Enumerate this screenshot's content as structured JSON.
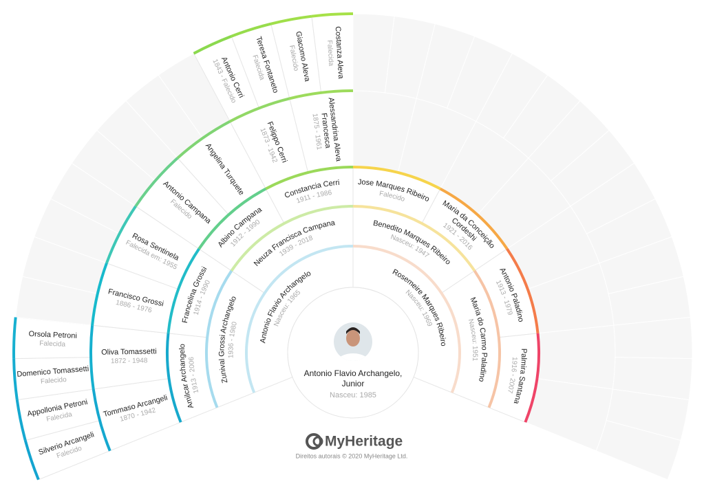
{
  "root": {
    "name": [
      "Antonio Flavio Archangelo,",
      "Junior"
    ],
    "dates": "Nasceu: 1985"
  },
  "generations": [
    [
      {
        "name": "Antonio Flavio Archangelo",
        "dates": "Nasceu: 1965",
        "color": "#c3e6f2"
      },
      {
        "name": "Rosemeire Marques Ribeiro",
        "dates": "Nasceu: 1969",
        "color": "#f8dccb"
      }
    ],
    [
      {
        "name": "Zunival Grossi Archangelo",
        "dates": "1936 - 1980",
        "color": "#a6dbee"
      },
      {
        "name": "Neuza Francisca Campana",
        "dates": "1939 - 2018",
        "color": "#cdeba6"
      },
      {
        "name": "Benedito Marques Ribeiro",
        "dates": "Nasceu: 1947",
        "color": "#f6e39c"
      },
      {
        "name": "Maria do Carmo Paladino",
        "dates": "Nasceu: 1951",
        "color": "#f6c4a6"
      }
    ],
    [
      {
        "name": "Amilcar Archangelo",
        "dates": "1913 - 2006",
        "color": "#17a9cc"
      },
      {
        "name": "Francelina Grossi",
        "dates": "1914 - 1990",
        "color": "#22bcc8"
      },
      {
        "name": "Albino Campana",
        "dates": "1912 - 1990",
        "color": "#63cf8c"
      },
      {
        "name": "Constancia Cerri",
        "dates": "1911 - 1986",
        "color": "#9bd95a"
      },
      {
        "name": "Jose Marques Ribeiro",
        "dates": "Falecido",
        "color": "#f6d44c"
      },
      {
        "name": [
          "Maria da Conceição",
          "Cordeshi"
        ],
        "dates": "1921 - 2016",
        "color": "#f6a845"
      },
      {
        "name": "Antonio Paladino",
        "dates": "1913 - 1979",
        "color": "#f47c4a"
      },
      {
        "name": "Palmira Santana",
        "dates": "1916 - 2007",
        "color": "#ef4468"
      }
    ],
    [
      {
        "name": "Tommaso Arcangeli",
        "dates": "1870 - 1942",
        "color": "#15a8cf"
      },
      {
        "name": "Oliva Tomassetti",
        "dates": "1872 - 1948",
        "color": "#16b0cf"
      },
      {
        "name": "Francisco Grossi",
        "dates": "1886 - 1976",
        "color": "#18bacc"
      },
      {
        "name": "Rosa Sentinela",
        "dates": "Falecida em: 1955",
        "color": "#3ec7b6"
      },
      {
        "name": "Antonio Campana",
        "dates": "Falecido",
        "color": "#6ad08c"
      },
      {
        "name": "Angelina Turquete",
        "color": "#80d474"
      },
      {
        "name": "Felippo Cerri",
        "dates": "1873 - 1942",
        "color": "#92d866"
      },
      {
        "name": [
          "Alessandrina Aleva",
          "Francesca"
        ],
        "dates": "1875 - 1961",
        "color": "#9ddb5c"
      },
      null,
      null,
      null,
      null,
      null,
      null,
      null,
      null
    ],
    [
      {
        "name": "Silverio Arcangeli",
        "dates": "Falecido",
        "color": "#14a4d0"
      },
      {
        "name": "Appollonia Petroni",
        "dates": "Falecida",
        "color": "#15a8d0"
      },
      {
        "name": "Domenico Tomassetti",
        "dates": "Falecido",
        "color": "#16acd0"
      },
      {
        "name": "Orsola Petroni",
        "dates": "Falecida",
        "color": "#17b0d0"
      },
      null,
      null,
      null,
      null,
      null,
      null,
      null,
      null,
      {
        "name": "Antonio Cerri",
        "dates": "1843 - Falecido",
        "color": "#8bd94e"
      },
      {
        "name": "Teresa Fontaneto",
        "dates": "Falecida",
        "color": "#97dc4c"
      },
      {
        "name": "Giacomo Aleva",
        "dates": "Falecido",
        "color": "#a0df4a"
      },
      {
        "name": "Costanza Aleva",
        "dates": "Falecida",
        "color": "#a6e148"
      },
      null,
      null,
      null,
      null,
      null,
      null,
      null,
      null,
      null,
      null,
      null,
      null,
      null,
      null,
      null,
      null
    ]
  ],
  "logo": "MyHeritage",
  "copyright": "Direitos autorais © 2020 MyHeritage Ltd."
}
